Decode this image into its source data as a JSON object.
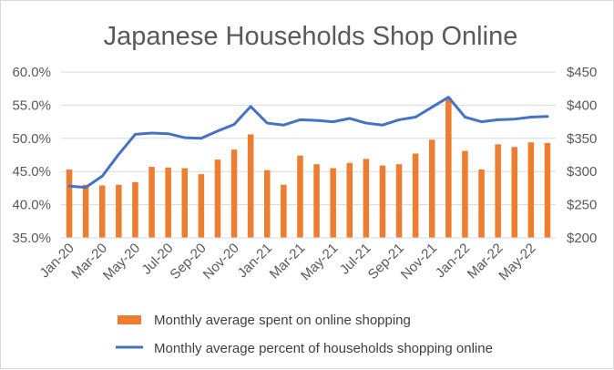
{
  "chart_data": {
    "type": "bar+line",
    "title": "Japanese Households Shop Online",
    "categories": [
      "Jan-20",
      "Feb-20",
      "Mar-20",
      "Apr-20",
      "May-20",
      "Jun-20",
      "Jul-20",
      "Aug-20",
      "Sep-20",
      "Oct-20",
      "Nov-20",
      "Dec-20",
      "Jan-21",
      "Feb-21",
      "Mar-21",
      "Apr-21",
      "May-21",
      "Jun-21",
      "Jul-21",
      "Aug-21",
      "Sep-21",
      "Oct-21",
      "Nov-21",
      "Dec-21",
      "Jan-22",
      "Feb-22",
      "Mar-22",
      "Apr-22",
      "May-22",
      "Jun-22"
    ],
    "x_tick_labels": [
      "Jan-20",
      "Mar-20",
      "May-20",
      "Jul-20",
      "Sep-20",
      "Nov-20",
      "Jan-21",
      "Mar-21",
      "May-21",
      "Jul-21",
      "Sep-21",
      "Nov-21",
      "Jan-22",
      "Mar-22",
      "May-22"
    ],
    "series": [
      {
        "name": "Monthly average spent on online shopping",
        "type": "bar",
        "axis": "right",
        "color": "#ed7d31",
        "values": [
          303,
          280,
          279,
          280,
          284,
          307,
          306,
          305,
          296,
          318,
          333,
          356,
          302,
          280,
          324,
          311,
          305,
          313,
          319,
          309,
          311,
          327,
          348,
          411,
          331,
          303,
          341,
          337,
          344,
          343
        ]
      },
      {
        "name": "Monthly average percent of households shopping online",
        "type": "line",
        "axis": "left",
        "color": "#4472c4",
        "values": [
          42.8,
          42.6,
          44.3,
          47.6,
          50.6,
          50.8,
          50.7,
          50.1,
          50.0,
          51.1,
          52.1,
          54.8,
          52.3,
          52.0,
          52.8,
          52.7,
          52.5,
          53.0,
          52.3,
          52.0,
          52.8,
          53.2,
          54.7,
          56.2,
          53.2,
          52.5,
          52.8,
          52.9,
          53.2,
          53.3
        ]
      }
    ],
    "y_left": {
      "min": 35,
      "max": 60,
      "step": 5,
      "tick_labels": [
        "35.0%",
        "40.0%",
        "45.0%",
        "50.0%",
        "55.0%",
        "60.0%"
      ]
    },
    "y_right": {
      "min": 200,
      "max": 450,
      "step": 50,
      "tick_labels": [
        "$200",
        "$250",
        "$300",
        "$350",
        "$400",
        "$450"
      ]
    },
    "grid": true,
    "legend": "bottom"
  }
}
